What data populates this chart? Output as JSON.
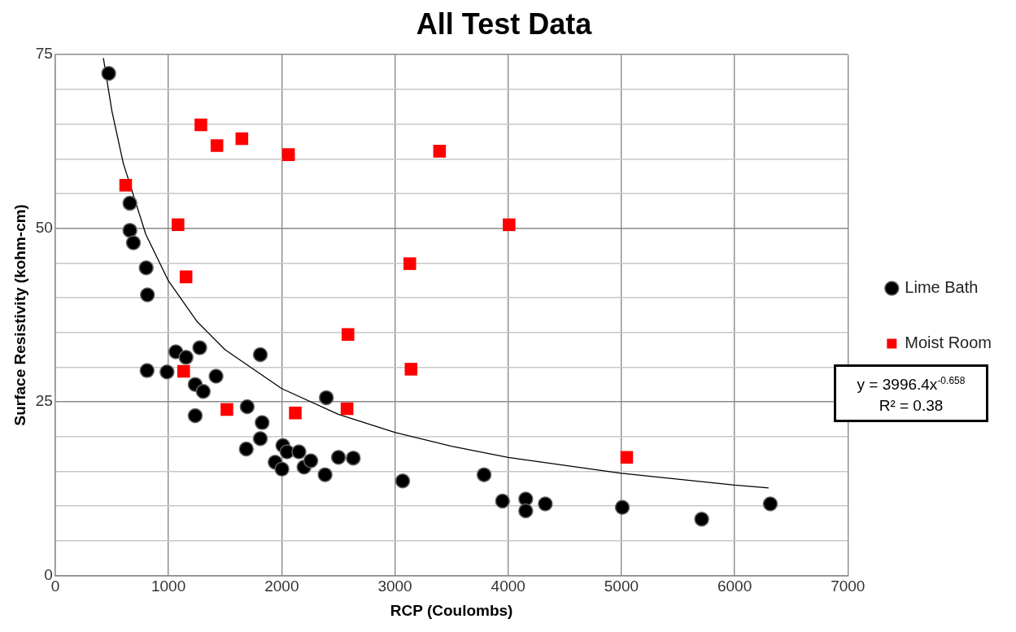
{
  "chart_data": {
    "type": "scatter",
    "title": "All Test Data",
    "xlabel": "RCP (Coulombs)",
    "ylabel": "Surface Resistivity (kohm-cm)",
    "xlim": [
      0,
      7000
    ],
    "xticks": [
      0,
      1000,
      2000,
      3000,
      4000,
      5000,
      6000,
      7000
    ],
    "ylim": [
      0,
      75
    ],
    "yticks": [
      0,
      {
        "value": 5,
        "label": null
      },
      {
        "value": 10,
        "label": null
      },
      {
        "value": 15,
        "label": null
      },
      {
        "value": 20,
        "label": null
      },
      25,
      {
        "value": 30,
        "label": null
      },
      {
        "value": 35,
        "label": null
      },
      {
        "value": 40,
        "label": null
      },
      {
        "value": 45,
        "label": null
      },
      50,
      {
        "value": 55,
        "label": null
      },
      {
        "value": 60,
        "label": null
      },
      {
        "value": 65,
        "label": null
      },
      {
        "value": 70,
        "label": null
      },
      75
    ],
    "grid": true,
    "legend": "right",
    "annotations": [
      "y = 3996.4x$^{-0.658}$",
      "R² = 0.38"
    ],
    "series": [
      {
        "name": "Lime Bath",
        "color": "#000000",
        "marker": "circle",
        "x": [
          472,
          659,
          659,
          690,
          803,
          814,
          1065,
          1155,
          1276,
          1811,
          811,
          987,
          1236,
          1307,
          1420,
          1236,
          1695,
          1827,
          1811,
          1687,
          2010,
          2047,
          2152,
          1942,
          2002,
          2197,
          2257,
          2383,
          2501,
          2632,
          3068,
          2394,
          3787,
          3950,
          4155,
          4155,
          4328,
          5008,
          5709,
          6315
        ],
        "values": [
          72.3,
          53.6,
          49.7,
          47.9,
          44.3,
          40.4,
          32.2,
          31.4,
          32.8,
          31.8,
          29.5,
          29.3,
          27.5,
          26.5,
          28.7,
          23.0,
          24.3,
          22.0,
          19.7,
          18.2,
          18.7,
          17.8,
          17.8,
          16.3,
          15.3,
          15.6,
          16.5,
          14.5,
          17.0,
          16.9,
          13.6,
          25.6,
          14.5,
          10.7,
          11.0,
          9.3,
          10.3,
          9.8,
          8.1,
          10.3
        ]
      },
      {
        "name": "Moist Room",
        "color": "#ff0000",
        "marker": "square",
        "x": [
          622,
          1286,
          1428,
          1648,
          2060,
          1084,
          1155,
          2585,
          1134,
          1516,
          2120,
          2577,
          3142,
          3394,
          4008,
          3131,
          5047
        ],
        "values": [
          56.2,
          64.9,
          61.9,
          62.9,
          60.6,
          50.5,
          43.0,
          34.7,
          29.4,
          23.9,
          23.4,
          24.0,
          29.7,
          61.1,
          50.5,
          44.9,
          17.0
        ]
      },
      {
        "type": "line",
        "color": "#000000",
        "marker": "none",
        "line_style": "solid",
        "x": [
          425,
          500,
          600,
          800,
          1000,
          1250,
          1500,
          2000,
          2500,
          3000,
          3500,
          4000,
          5000,
          6000,
          6300
        ],
        "values": [
          74.5,
          66.9,
          59.4,
          49.1,
          42.4,
          36.6,
          32.5,
          26.9,
          23.2,
          20.6,
          18.6,
          17.0,
          14.7,
          13.0,
          12.6
        ]
      }
    ]
  }
}
